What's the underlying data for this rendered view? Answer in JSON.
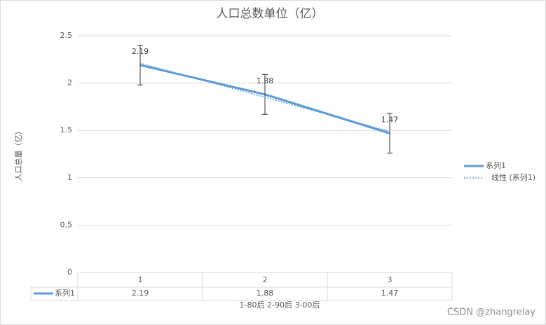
{
  "chart_data": {
    "type": "line",
    "title": "人口总数单位（亿）",
    "y_label": "人口总量（亿）",
    "x_label": "1-80后 2-90后 3-00后",
    "categories": [
      "1",
      "2",
      "3"
    ],
    "series": [
      {
        "name": "系列1",
        "color": "#5b9bd5",
        "values": [
          2.19,
          1.88,
          1.47
        ],
        "error": [
          0.21,
          0.21,
          0.21
        ]
      },
      {
        "name": "线性 (系列1)",
        "color": "#5b9bd5",
        "style": "dotted",
        "values": [
          2.21,
          1.85,
          1.49
        ]
      }
    ],
    "ylim": [
      0,
      2.5
    ],
    "yticks": [
      0,
      0.5,
      1,
      1.5,
      2,
      2.5
    ],
    "grid": true,
    "legend": "right",
    "watermark": "CSDN @zhangrelay"
  }
}
